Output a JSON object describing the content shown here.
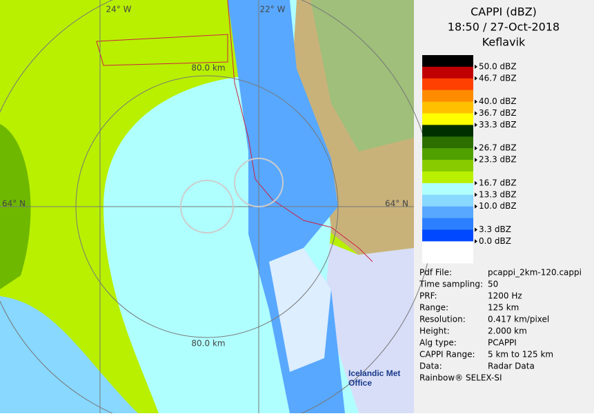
{
  "map": {
    "labels": [
      "24° W",
      "22° W",
      "80.0 km",
      "64° N",
      "80.0 km",
      "64° N"
    ],
    "logo": "Icelandic Met Office"
  },
  "header": {
    "product": "CAPPI (dBZ)",
    "time": "18:50 / 27-Oct-2018",
    "site": "Keflavik"
  },
  "legend": {
    "bands": [
      {
        "color": "#000000",
        "label": "50.0 dBZ"
      },
      {
        "color": "#c00000",
        "label": "46.7 dBZ"
      },
      {
        "color": "#ff4000"
      },
      {
        "color": "#ff8c00",
        "label": "40.0 dBZ"
      },
      {
        "color": "#ffc000",
        "label": "36.7 dBZ"
      },
      {
        "color": "#ffff00",
        "label": "33.3 dBZ"
      },
      {
        "color": "#003000"
      },
      {
        "color": "#2e7000",
        "label": "26.7 dBZ"
      },
      {
        "color": "#50a000",
        "label": "23.3 dBZ"
      },
      {
        "color": "#88cc00"
      },
      {
        "color": "#b8f000",
        "label": "16.7 dBZ"
      },
      {
        "color": "#b0ffff",
        "label": "13.3 dBZ"
      },
      {
        "color": "#88d8ff",
        "label": "10.0 dBZ"
      },
      {
        "color": "#58a8ff"
      },
      {
        "color": "#2c80ff",
        "label": "3.3 dBZ"
      },
      {
        "color": "#0048ff",
        "label": "0.0 dBZ"
      },
      {
        "color": "#ffffff"
      }
    ]
  },
  "info": {
    "rows": [
      [
        "Pdf File:",
        "pcappi_2km-120.cappi"
      ],
      [
        "Time sampling:",
        "50"
      ],
      [
        "PRF:",
        "1200 Hz"
      ],
      [
        "Range:",
        "125 km"
      ],
      [
        "Resolution:",
        "0.417 km/pixel"
      ],
      [
        "Height:",
        "2.000 km"
      ],
      [
        "Alg type:",
        "PCAPPI"
      ],
      [
        "CAPPI Range:",
        "5 km to 125 km"
      ],
      [
        "Data:",
        "Radar Data"
      ]
    ],
    "footer": "Rainbow® SELEX-SI"
  }
}
